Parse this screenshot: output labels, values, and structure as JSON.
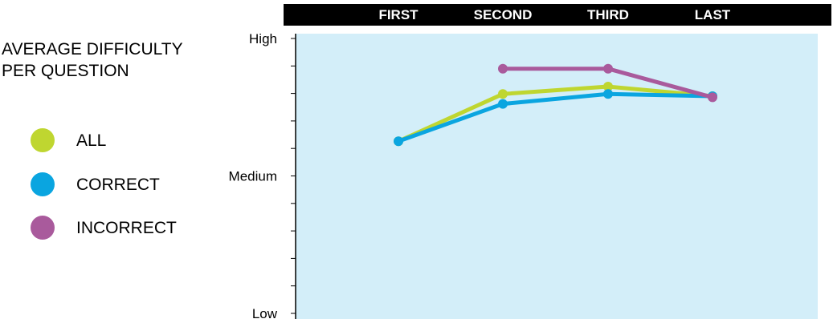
{
  "chart_data": {
    "type": "line",
    "title": "AVERAGE DIFFICULTY PER QUESTION",
    "categories": [
      "FIRST",
      "SECOND",
      "THIRD",
      "LAST"
    ],
    "yticks": [
      "Low",
      "Medium",
      "High"
    ],
    "ylim": [
      0,
      10
    ],
    "ylabel": "",
    "xlabel": "",
    "grid": false,
    "legend_position": "left",
    "series": [
      {
        "name": "ALL",
        "color": "#bfd630",
        "values": [
          6.26,
          7.98,
          8.25,
          7.9
        ]
      },
      {
        "name": "CORRECT",
        "color": "#0aa5e0",
        "values": [
          6.26,
          7.62,
          7.98,
          7.9
        ]
      },
      {
        "name": "INCORRECT",
        "color": "#a95a9c",
        "values": [
          null,
          8.9,
          8.9,
          7.86
        ]
      }
    ],
    "colors": {
      "plot_background": "#d3eef9",
      "header_band": "#000000",
      "header_text": "#ffffff"
    }
  }
}
